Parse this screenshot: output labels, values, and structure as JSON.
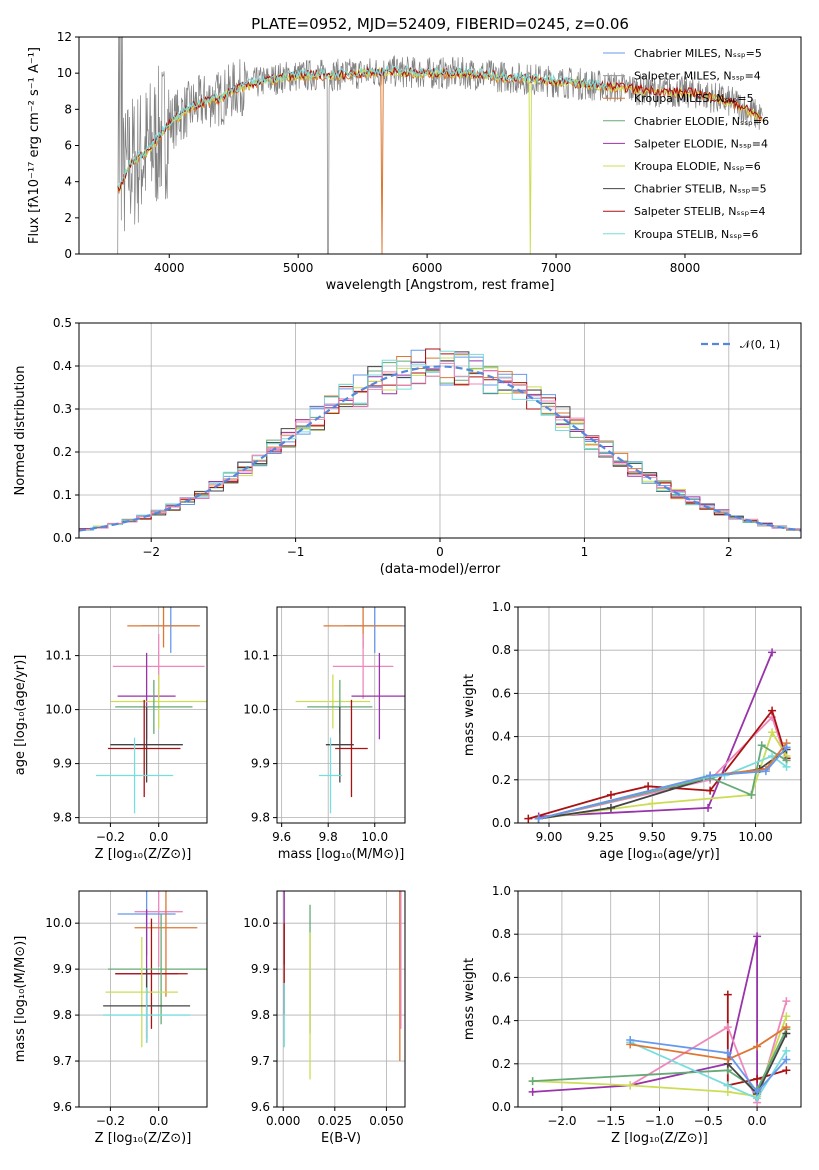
{
  "colors": {
    "Chabrier MILES": "#6699ee",
    "Salpeter MILES": "#999999",
    "Kroupa MILES": "#dd7733",
    "Chabrier ELODIE": "#66aa77",
    "Salpeter ELODIE": "#9933aa",
    "Kroupa ELODIE": "#ccdd55",
    "Chabrier STELIB": "#444444",
    "Salpeter STELIB": "#aa1111",
    "Kroupa STELIB": "#77dddd",
    "extra": "#ee88bb",
    "normal_curve": "#5588dd"
  },
  "chart_data": [
    {
      "id": "spectrum",
      "type": "line",
      "title": "PLATE=0952, MJD=52409, FIBERID=0245, z=0.06",
      "xlabel": "wavelength [Angstrom, rest frame]",
      "ylabel": "Flux [fλ10⁻¹⁷ erg cm⁻² s⁻¹ A⁻¹]",
      "xlim": [
        3300,
        8900
      ],
      "ylim": [
        0,
        12
      ],
      "xticks": [
        4000,
        5000,
        6000,
        7000,
        8000
      ],
      "yticks": [
        0,
        2,
        4,
        6,
        8,
        10,
        12
      ],
      "legend_position": "right",
      "legend": [
        "Chabrier MILES, Nₛₛₚ=5",
        "Salpeter MILES, Nₛₛₚ=4",
        "Kroupa MILES, Nₛₛₚ=5",
        "Chabrier ELODIE, Nₛₛₚ=6",
        "Salpeter ELODIE, Nₛₛₚ=4",
        "Kroupa ELODIE, Nₛₛₚ=6",
        "Chabrier STELIB, Nₛₛₚ=5",
        "Salpeter STELIB, Nₛₛₚ=4",
        "Kroupa STELIB, Nₛₛₚ=6"
      ],
      "continuum": {
        "x": [
          3600,
          3700,
          3800,
          3900,
          4000,
          4100,
          4200,
          4300,
          4400,
          4500,
          4700,
          4900,
          5100,
          5300,
          5500,
          5700,
          6000,
          6300,
          6600,
          6900,
          7200,
          7500,
          7800,
          8100,
          8400,
          8600
        ],
        "y": [
          3.5,
          5.0,
          5.5,
          6.3,
          7.2,
          7.8,
          8.2,
          8.5,
          8.6,
          9.1,
          9.5,
          9.8,
          9.9,
          9.9,
          10.0,
          10.1,
          10.0,
          10.0,
          9.8,
          9.6,
          9.4,
          9.2,
          9.0,
          8.9,
          8.3,
          7.5
        ]
      }
    },
    {
      "id": "residuals",
      "type": "bar",
      "xlabel": "(data-model)/error",
      "ylabel": "Normed distribution",
      "xlim": [
        -2.5,
        2.5
      ],
      "ylim": [
        0,
        0.5
      ],
      "xticks": [
        -2,
        -1,
        0,
        1,
        2
      ],
      "yticks": [
        0.0,
        0.1,
        0.2,
        0.3,
        0.4,
        0.5
      ],
      "legend": [
        "𝒩(0, 1)"
      ],
      "legend_position": "top-right",
      "bin_width": 0.1
    },
    {
      "id": "age-vs-Z",
      "type": "scatter",
      "xlabel": "Z [log₁₀(Z/Z⊙)]",
      "ylabel": "age  [log₁₀(age/yr)]",
      "xlim": [
        -0.33,
        0.2
      ],
      "ylim": [
        9.79,
        10.19
      ],
      "xticks": [
        -0.2,
        0.0
      ],
      "yticks": [
        9.8,
        9.9,
        10.0,
        10.1
      ],
      "points": [
        {
          "x": 0.05,
          "y": 10.155,
          "xerr": 0.12,
          "yerr": 0.05,
          "c": "Chabrier MILES"
        },
        {
          "x": 0.02,
          "y": 10.155,
          "xerr": 0.15,
          "yerr": 0.04,
          "c": "Kroupa MILES"
        },
        {
          "x": 0.0,
          "y": 10.08,
          "xerr": 0.19,
          "yerr": 0.06,
          "c": "extra"
        },
        {
          "x": -0.05,
          "y": 10.025,
          "xerr": 0.12,
          "yerr": 0.08,
          "c": "Salpeter ELODIE"
        },
        {
          "x": 0.0,
          "y": 10.015,
          "xerr": 0.2,
          "yerr": 0.05,
          "c": "Kroupa ELODIE"
        },
        {
          "x": -0.02,
          "y": 10.005,
          "xerr": 0.16,
          "yerr": 0.05,
          "c": "Chabrier ELODIE"
        },
        {
          "x": -0.05,
          "y": 9.935,
          "xerr": 0.15,
          "yerr": 0.07,
          "c": "Chabrier STELIB"
        },
        {
          "x": -0.06,
          "y": 9.928,
          "xerr": 0.15,
          "yerr": 0.09,
          "c": "Salpeter STELIB"
        },
        {
          "x": -0.1,
          "y": 9.878,
          "xerr": 0.16,
          "yerr": 0.07,
          "c": "Kroupa STELIB"
        }
      ]
    },
    {
      "id": "age-vs-mass",
      "type": "scatter",
      "xlabel": "mass [log₁₀(M/M⊙)]",
      "ylabel": "",
      "xlim": [
        9.58,
        10.13
      ],
      "ylim": [
        9.79,
        10.19
      ],
      "xticks": [
        9.6,
        9.8,
        10.0
      ],
      "yticks": [
        9.8,
        9.9,
        10.0,
        10.1
      ],
      "points": [
        {
          "x": 10.0,
          "y": 10.155,
          "xerr": 0.13,
          "yerr": 0.05,
          "c": "Chabrier MILES"
        },
        {
          "x": 9.95,
          "y": 10.155,
          "xerr": 0.17,
          "yerr": 0.04,
          "c": "Kroupa MILES"
        },
        {
          "x": 9.95,
          "y": 10.08,
          "xerr": 0.13,
          "yerr": 0.06,
          "c": "extra"
        },
        {
          "x": 10.02,
          "y": 10.025,
          "xerr": 0.12,
          "yerr": 0.08,
          "c": "Salpeter ELODIE"
        },
        {
          "x": 9.82,
          "y": 10.015,
          "xerr": 0.16,
          "yerr": 0.05,
          "c": "Kroupa ELODIE"
        },
        {
          "x": 9.85,
          "y": 10.005,
          "xerr": 0.14,
          "yerr": 0.05,
          "c": "Chabrier ELODIE"
        },
        {
          "x": 9.85,
          "y": 9.935,
          "xerr": 0.06,
          "yerr": 0.07,
          "c": "Chabrier STELIB"
        },
        {
          "x": 9.9,
          "y": 9.928,
          "xerr": 0.07,
          "yerr": 0.09,
          "c": "Salpeter STELIB"
        },
        {
          "x": 9.81,
          "y": 9.878,
          "xerr": 0.05,
          "yerr": 0.07,
          "c": "Kroupa STELIB"
        }
      ]
    },
    {
      "id": "mass-weight-vs-age",
      "type": "line",
      "xlabel": "age  [log₁₀(age/yr)]",
      "ylabel": "mass weight",
      "xlim": [
        8.85,
        10.22
      ],
      "ylim": [
        0,
        1.0
      ],
      "xticks": [
        9.0,
        9.25,
        9.5,
        9.75,
        10.0
      ],
      "yticks": [
        0.0,
        0.2,
        0.4,
        0.6,
        0.8,
        1.0
      ],
      "series": [
        {
          "c": "Salpeter ELODIE",
          "x": [
            8.95,
            9.77,
            10.08
          ],
          "y": [
            0.03,
            0.07,
            0.79
          ]
        },
        {
          "c": "extra",
          "x": [
            8.95,
            9.78,
            10.08,
            10.15
          ],
          "y": [
            0.02,
            0.2,
            0.49,
            0.29
          ]
        },
        {
          "c": "Salpeter STELIB",
          "x": [
            8.9,
            9.3,
            9.48,
            9.78,
            10.08,
            10.15
          ],
          "y": [
            0.02,
            0.13,
            0.17,
            0.15,
            0.52,
            0.3
          ]
        },
        {
          "c": "Kroupa ELODIE",
          "x": [
            8.95,
            9.5,
            9.98,
            10.08,
            10.15
          ],
          "y": [
            0.02,
            0.09,
            0.13,
            0.42,
            0.31
          ]
        },
        {
          "c": "Chabrier STELIB",
          "x": [
            8.95,
            9.3,
            9.78,
            10.02,
            10.15
          ],
          "y": [
            0.02,
            0.07,
            0.21,
            0.25,
            0.34
          ]
        },
        {
          "c": "Chabrier ELODIE",
          "x": [
            8.95,
            9.78,
            9.98,
            10.03,
            10.15
          ],
          "y": [
            0.02,
            0.21,
            0.13,
            0.36,
            0.29
          ]
        },
        {
          "c": "Kroupa STELIB",
          "x": [
            8.95,
            9.75,
            9.85,
            10.08,
            10.15
          ],
          "y": [
            0.02,
            0.21,
            0.22,
            0.31,
            0.26
          ]
        },
        {
          "c": "Kroupa MILES",
          "x": [
            8.95,
            9.78,
            10.05,
            10.15
          ],
          "y": [
            0.02,
            0.22,
            0.25,
            0.37
          ]
        },
        {
          "c": "Chabrier MILES",
          "x": [
            8.95,
            9.78,
            10.05,
            10.15
          ],
          "y": [
            0.02,
            0.22,
            0.24,
            0.35
          ]
        }
      ]
    },
    {
      "id": "mass-vs-Z",
      "type": "scatter",
      "xlabel": "Z [log₁₀(Z/Z⊙)]",
      "ylabel": "mass [log₁₀(M/M⊙)]",
      "xlim": [
        -0.33,
        0.2
      ],
      "ylim": [
        9.6,
        10.07
      ],
      "xticks": [
        -0.2,
        0.0
      ],
      "yticks": [
        9.6,
        9.7,
        9.8,
        9.9,
        10.0
      ],
      "points": [
        {
          "x": 0.0,
          "y": 10.025,
          "xerr": 0.1,
          "yerr": 0.12,
          "c": "extra"
        },
        {
          "x": -0.05,
          "y": 10.02,
          "xerr": 0.12,
          "yerr": 0.09,
          "c": "Chabrier MILES"
        },
        {
          "x": 0.03,
          "y": 9.99,
          "xerr": 0.13,
          "yerr": 0.15,
          "c": "Kroupa MILES"
        },
        {
          "x": -0.05,
          "y": 9.89,
          "xerr": 0.13,
          "yerr": 0.14,
          "c": "Salpeter ELODIE"
        },
        {
          "x": -0.03,
          "y": 9.89,
          "xerr": 0.15,
          "yerr": 0.12,
          "c": "Salpeter STELIB"
        },
        {
          "x": 0.01,
          "y": 9.9,
          "xerr": 0.22,
          "yerr": 0.12,
          "c": "Chabrier ELODIE"
        },
        {
          "x": -0.07,
          "y": 9.85,
          "xerr": 0.15,
          "yerr": 0.12,
          "c": "Kroupa ELODIE"
        },
        {
          "x": -0.05,
          "y": 9.82,
          "xerr": 0.18,
          "yerr": 0.08,
          "c": "Chabrier STELIB"
        },
        {
          "x": -0.05,
          "y": 9.8,
          "xerr": 0.18,
          "yerr": 0.06,
          "c": "Kroupa STELIB"
        }
      ]
    },
    {
      "id": "mass-vs-ebv",
      "type": "scatter",
      "xlabel": "E(B-V)",
      "ylabel": "",
      "xlim": [
        -0.003,
        0.059
      ],
      "ylim": [
        9.6,
        10.07
      ],
      "xticks": [
        0.0,
        0.025,
        0.05
      ],
      "yticks": [
        9.6,
        9.7,
        9.8,
        9.9,
        10.0
      ],
      "points": [
        {
          "x": 0.0005,
          "y": 10.02,
          "yerr": 0.11,
          "c": "Salpeter ELODIE"
        },
        {
          "x": 0.0005,
          "y": 9.9,
          "yerr": 0.1,
          "c": "Salpeter STELIB"
        },
        {
          "x": 0.0005,
          "y": 9.8,
          "yerr": 0.07,
          "c": "Kroupa STELIB"
        },
        {
          "x": 0.013,
          "y": 9.9,
          "yerr": 0.14,
          "c": "Chabrier ELODIE"
        },
        {
          "x": 0.013,
          "y": 9.82,
          "yerr": 0.16,
          "c": "Kroupa ELODIE"
        },
        {
          "x": 0.0565,
          "y": 10.02,
          "yerr": 0.12,
          "c": "Chabrier MILES"
        },
        {
          "x": 0.0565,
          "y": 9.9,
          "yerr": 0.2,
          "c": "Kroupa MILES"
        },
        {
          "x": 0.057,
          "y": 9.95,
          "yerr": 0.18,
          "c": "extra"
        }
      ]
    },
    {
      "id": "mass-weight-vs-Z",
      "type": "line",
      "xlabel": "Z [log₁₀(Z/Z⊙)]",
      "ylabel": "mass weight",
      "xlim": [
        -2.45,
        0.45
      ],
      "ylim": [
        0,
        1.0
      ],
      "xticks": [
        -2.0,
        -1.5,
        -1.0,
        -0.5,
        0.0
      ],
      "yticks": [
        0.0,
        0.2,
        0.4,
        0.6,
        0.8,
        1.0
      ],
      "series": [
        {
          "c": "Salpeter ELODIE",
          "x": [
            -2.3,
            -1.3,
            -0.3,
            0.0,
            0.0
          ],
          "y": [
            0.07,
            0.1,
            0.2,
            0.79,
            0.05
          ]
        },
        {
          "c": "Salpeter STELIB",
          "x": [
            -0.3,
            -0.3,
            0.0,
            0.3
          ],
          "y": [
            0.52,
            0.1,
            0.13,
            0.17
          ]
        },
        {
          "c": "extra",
          "x": [
            -1.3,
            -0.3,
            0.0,
            0.3
          ],
          "y": [
            0.1,
            0.37,
            0.02,
            0.49
          ]
        },
        {
          "c": "Kroupa ELODIE",
          "x": [
            -2.3,
            -1.3,
            -0.3,
            0.0,
            0.3
          ],
          "y": [
            0.12,
            0.1,
            0.07,
            0.05,
            0.42
          ]
        },
        {
          "c": "Chabrier ELODIE",
          "x": [
            -2.3,
            -0.3,
            0.0,
            0.3
          ],
          "y": [
            0.12,
            0.17,
            0.08,
            0.36
          ]
        },
        {
          "c": "Chabrier STELIB",
          "x": [
            -0.3,
            0.0,
            0.3
          ],
          "y": [
            0.2,
            0.06,
            0.34
          ]
        },
        {
          "c": "Kroupa STELIB",
          "x": [
            -1.3,
            -0.3,
            0.0,
            0.3
          ],
          "y": [
            0.3,
            0.1,
            0.04,
            0.26
          ]
        },
        {
          "c": "Kroupa MILES",
          "x": [
            -1.3,
            -0.3,
            0.0,
            0.3
          ],
          "y": [
            0.29,
            0.22,
            0.28,
            0.37
          ]
        },
        {
          "c": "Chabrier MILES",
          "x": [
            -1.3,
            -0.3,
            0.0,
            0.3
          ],
          "y": [
            0.31,
            0.25,
            0.07,
            0.22
          ]
        }
      ]
    }
  ]
}
